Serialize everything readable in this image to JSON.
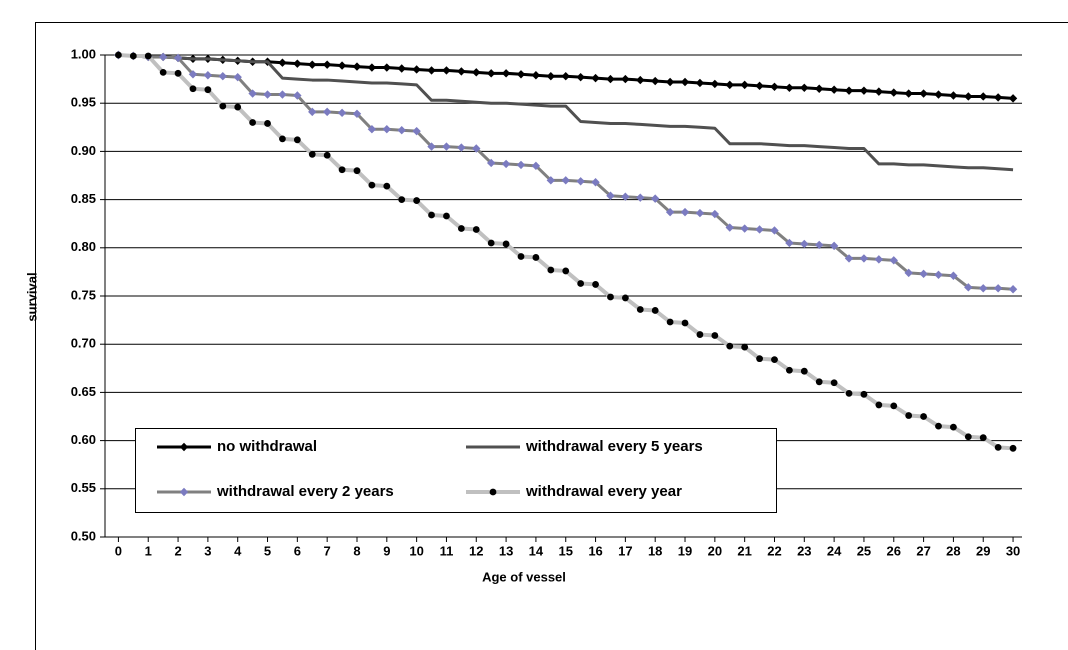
{
  "chart_data": {
    "type": "line",
    "x_label": "Age of vessel",
    "y_label": "survival",
    "x": [
      0,
      0.5,
      1,
      1.5,
      2,
      2.5,
      3,
      3.5,
      4,
      4.5,
      5,
      5.5,
      6,
      6.5,
      7,
      7.5,
      8,
      8.5,
      9,
      9.5,
      10,
      10.5,
      11,
      11.5,
      12,
      12.5,
      13,
      13.5,
      14,
      14.5,
      15,
      15.5,
      16,
      16.5,
      17,
      17.5,
      18,
      18.5,
      19,
      19.5,
      20,
      20.5,
      21,
      21.5,
      22,
      22.5,
      23,
      23.5,
      24,
      24.5,
      25,
      25.5,
      26,
      26.5,
      27,
      27.5,
      28,
      28.5,
      29,
      29.5,
      30
    ],
    "xlim": [
      -0.45,
      30.3
    ],
    "xticks": [
      0,
      1,
      2,
      3,
      4,
      5,
      6,
      7,
      8,
      9,
      10,
      11,
      12,
      13,
      14,
      15,
      16,
      17,
      18,
      19,
      20,
      21,
      22,
      23,
      24,
      25,
      26,
      27,
      28,
      29,
      30
    ],
    "ylim": [
      0.5,
      1.0
    ],
    "yticks": [
      {
        "value": 0.5,
        "label": "0.50"
      },
      {
        "value": 0.55,
        "label": "0.55"
      },
      {
        "value": 0.6,
        "label": "0.60"
      },
      {
        "value": 0.65,
        "label": "0.65"
      },
      {
        "value": 0.7,
        "label": "0.70"
      },
      {
        "value": 0.75,
        "label": "0.75"
      },
      {
        "value": 0.8,
        "label": "0.80"
      },
      {
        "value": 0.85,
        "label": "0.85"
      },
      {
        "value": 0.9,
        "label": "0.90"
      },
      {
        "value": 0.95,
        "label": "0.95"
      },
      {
        "value": 1.0,
        "label": "1.00"
      }
    ],
    "grid": true,
    "legend_loc": "lower left",
    "series": [
      {
        "name": "no withdrawal",
        "color": "#000000",
        "width": 3,
        "marker": "diamond",
        "marker_color": "#000000",
        "values": [
          1.0,
          0.999,
          0.998,
          0.998,
          0.997,
          0.996,
          0.996,
          0.995,
          0.994,
          0.993,
          0.993,
          0.992,
          0.991,
          0.99,
          0.99,
          0.989,
          0.988,
          0.987,
          0.987,
          0.986,
          0.985,
          0.984,
          0.984,
          0.983,
          0.982,
          0.981,
          0.981,
          0.98,
          0.979,
          0.978,
          0.978,
          0.977,
          0.976,
          0.975,
          0.975,
          0.974,
          0.973,
          0.972,
          0.972,
          0.971,
          0.97,
          0.969,
          0.969,
          0.968,
          0.967,
          0.966,
          0.966,
          0.965,
          0.964,
          0.963,
          0.963,
          0.962,
          0.961,
          0.96,
          0.96,
          0.959,
          0.958,
          0.957,
          0.957,
          0.956,
          0.955
        ]
      },
      {
        "name": "withdrawal every 5 years",
        "color": "#505050",
        "width": 3,
        "marker": "none",
        "marker_color": "#505050",
        "values": [
          1.0,
          0.999,
          0.998,
          0.998,
          0.997,
          0.996,
          0.996,
          0.995,
          0.994,
          0.993,
          0.993,
          0.976,
          0.975,
          0.974,
          0.974,
          0.973,
          0.972,
          0.971,
          0.971,
          0.97,
          0.969,
          0.953,
          0.953,
          0.952,
          0.951,
          0.95,
          0.95,
          0.949,
          0.948,
          0.947,
          0.947,
          0.931,
          0.93,
          0.929,
          0.929,
          0.928,
          0.927,
          0.926,
          0.926,
          0.925,
          0.924,
          0.908,
          0.908,
          0.908,
          0.907,
          0.906,
          0.906,
          0.905,
          0.904,
          0.903,
          0.903,
          0.887,
          0.887,
          0.886,
          0.886,
          0.885,
          0.884,
          0.883,
          0.883,
          0.882,
          0.881
        ]
      },
      {
        "name": "withdrawal every 2 years",
        "color": "#808080",
        "width": 3,
        "marker": "diamond",
        "marker_color": "#7b7bc0",
        "values": [
          1.0,
          0.999,
          0.998,
          0.998,
          0.997,
          0.98,
          0.979,
          0.978,
          0.977,
          0.96,
          0.959,
          0.959,
          0.958,
          0.941,
          0.941,
          0.94,
          0.939,
          0.923,
          0.923,
          0.922,
          0.921,
          0.905,
          0.905,
          0.904,
          0.903,
          0.888,
          0.887,
          0.886,
          0.885,
          0.87,
          0.87,
          0.869,
          0.868,
          0.854,
          0.853,
          0.852,
          0.851,
          0.837,
          0.837,
          0.836,
          0.835,
          0.821,
          0.82,
          0.819,
          0.818,
          0.805,
          0.804,
          0.803,
          0.802,
          0.789,
          0.789,
          0.788,
          0.787,
          0.774,
          0.773,
          0.772,
          0.771,
          0.759,
          0.758,
          0.758,
          0.757
        ]
      },
      {
        "name": "withdrawal every year",
        "color": "#c0c0c0",
        "width": 4,
        "marker": "circle",
        "marker_color": "#000000",
        "values": [
          1.0,
          0.999,
          0.999,
          0.982,
          0.981,
          0.965,
          0.964,
          0.947,
          0.946,
          0.93,
          0.929,
          0.913,
          0.912,
          0.897,
          0.896,
          0.881,
          0.88,
          0.865,
          0.864,
          0.85,
          0.849,
          0.834,
          0.833,
          0.82,
          0.819,
          0.805,
          0.804,
          0.791,
          0.79,
          0.777,
          0.776,
          0.763,
          0.762,
          0.749,
          0.748,
          0.736,
          0.735,
          0.723,
          0.722,
          0.71,
          0.709,
          0.698,
          0.697,
          0.685,
          0.684,
          0.673,
          0.672,
          0.661,
          0.66,
          0.649,
          0.648,
          0.637,
          0.636,
          0.626,
          0.625,
          0.615,
          0.614,
          0.604,
          0.603,
          0.593,
          0.592
        ]
      }
    ]
  }
}
